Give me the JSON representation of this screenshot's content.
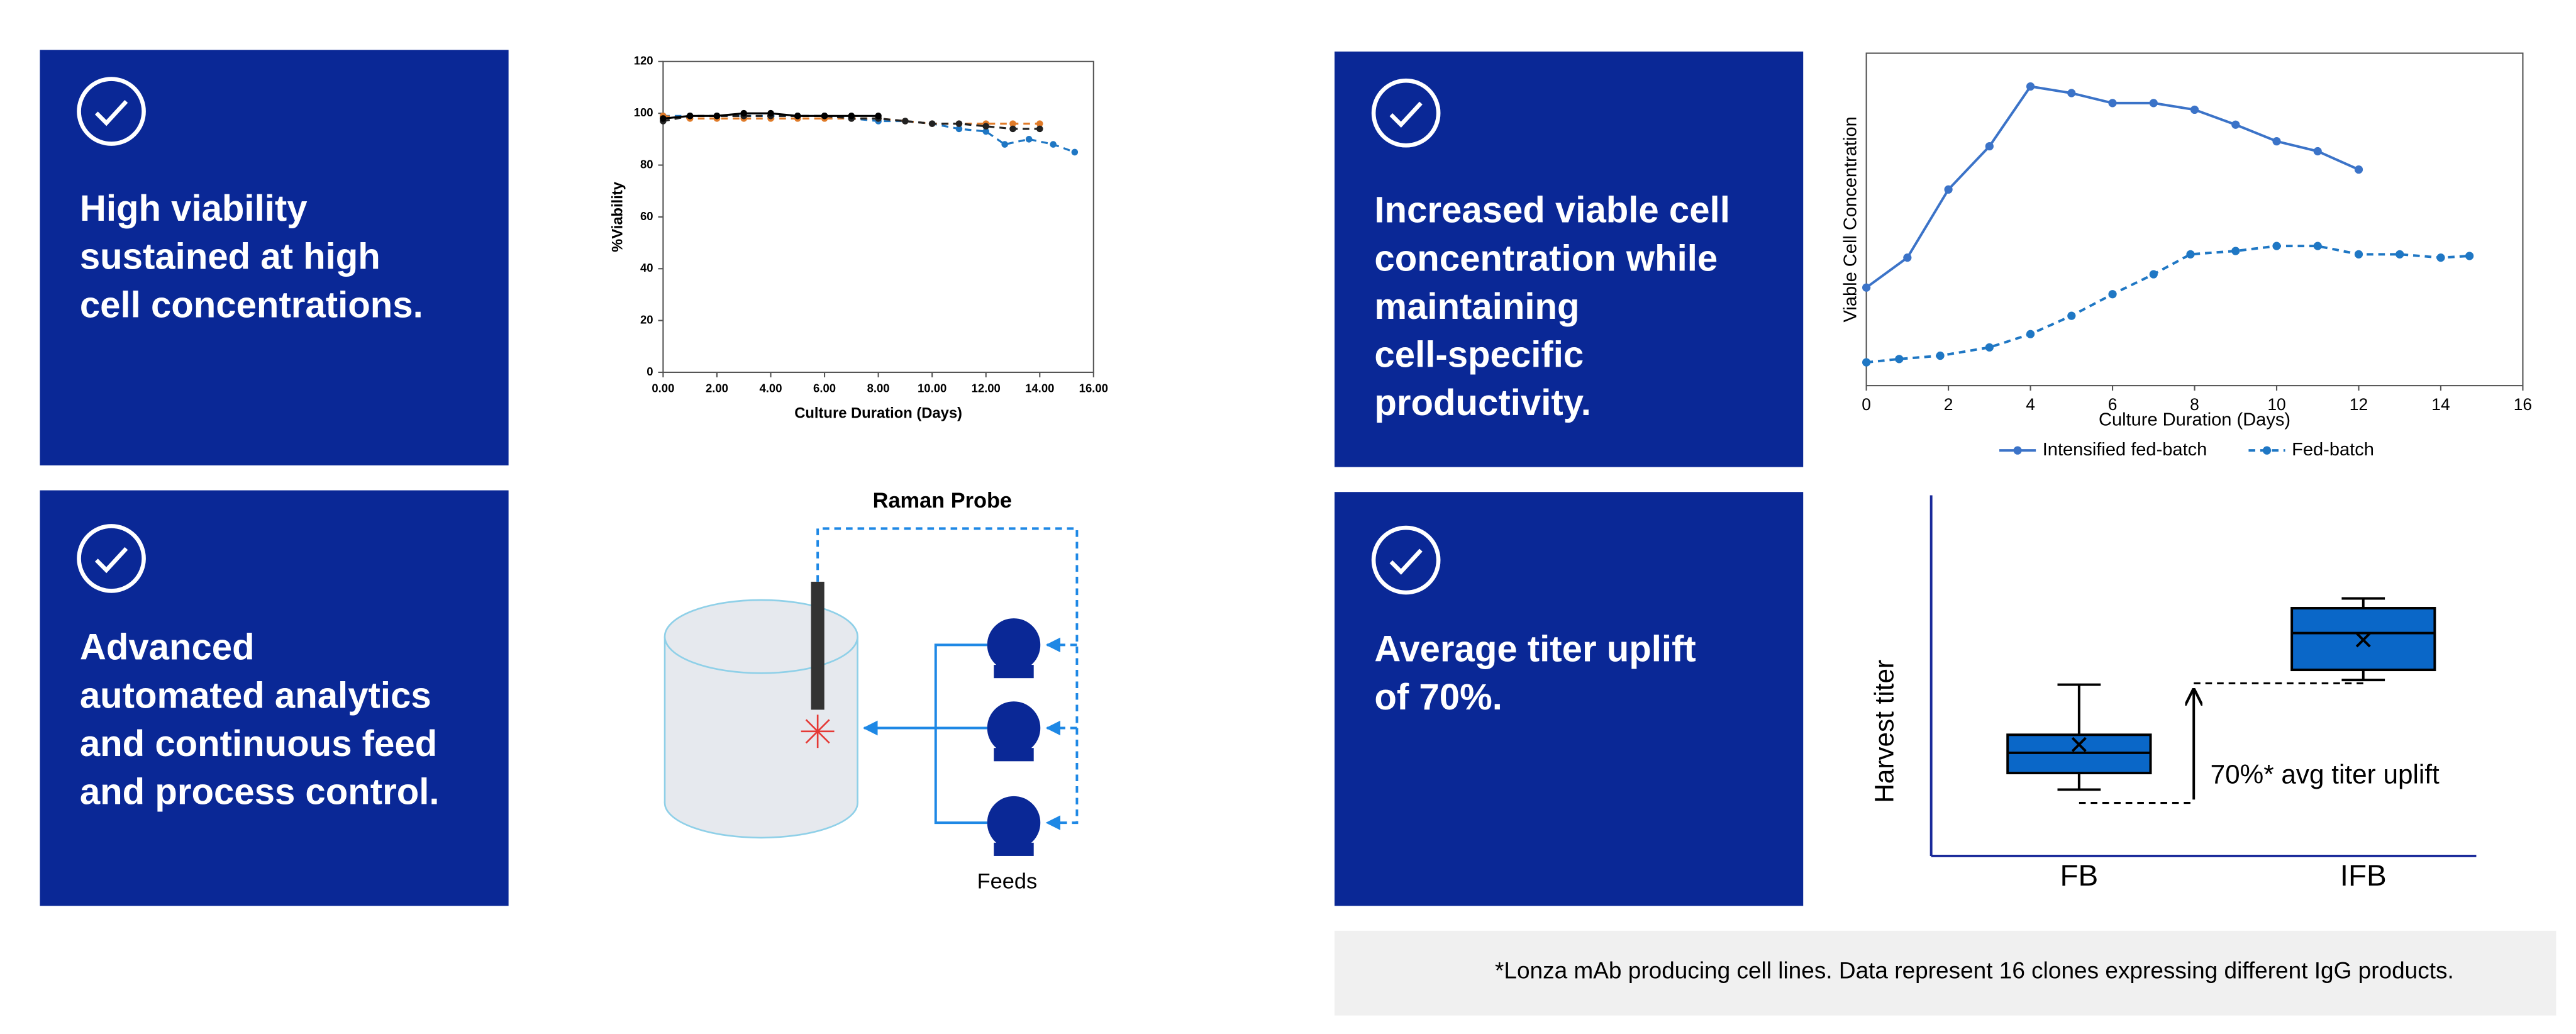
{
  "cards": [
    {
      "lines": [
        "High viability",
        "sustained at high",
        "cell concentrations."
      ]
    },
    {
      "lines": [
        "Advanced",
        "automated analytics",
        "and continuous feed",
        "and process control."
      ]
    },
    {
      "lines": [
        "Increased viable cell",
        "concentration while",
        "maintaining",
        "cell-specific",
        "productivity."
      ]
    },
    {
      "lines": [
        "Average titer uplift",
        "of 70%."
      ]
    }
  ],
  "diagram": {
    "title": "Raman Probe",
    "feeds_label": "Feeds"
  },
  "footnote": "*Lonza mAb producing cell lines. Data represent 16 clones expressing different IgG products.",
  "chart_data": [
    {
      "type": "line",
      "ylabel": "%Viability",
      "xlabel": "Culture Duration (Days)",
      "xlim": [
        0,
        16
      ],
      "xticks": [
        {
          "value": 0,
          "label": "0.00"
        },
        {
          "value": 2,
          "label": "2.00"
        },
        {
          "value": 4,
          "label": "4.00"
        },
        {
          "value": 6,
          "label": "6.00"
        },
        {
          "value": 8,
          "label": "8.00"
        },
        {
          "value": 10,
          "label": "10.00"
        },
        {
          "value": 12,
          "label": "12.00"
        },
        {
          "value": 14,
          "label": "14.00"
        },
        {
          "value": 16,
          "label": "16.00"
        }
      ],
      "ylim": [
        0,
        120
      ],
      "yticks": [
        0,
        20,
        40,
        60,
        80,
        100,
        120
      ],
      "series": [
        {
          "color": "#1f77c4",
          "line_style": "dashed",
          "x": [
            0,
            1,
            2,
            3,
            4,
            5,
            6,
            7,
            8,
            9,
            10,
            11,
            12,
            12.7,
            13.6,
            14.5,
            15.3
          ],
          "values": [
            99,
            99,
            99,
            99,
            99,
            99,
            99,
            98,
            97,
            97,
            96,
            94,
            93,
            88,
            90,
            88,
            85
          ]
        },
        {
          "color": "#e07b29",
          "line_style": "dashed",
          "x": [
            0,
            1,
            2,
            3,
            4,
            5,
            6,
            7,
            8,
            9,
            10,
            11,
            12,
            13,
            14
          ],
          "values": [
            99,
            98,
            98,
            98,
            98,
            98,
            98,
            98,
            98,
            97,
            96,
            96,
            96,
            96,
            96
          ]
        },
        {
          "color": "#222222",
          "line_style": "dashed",
          "x": [
            0,
            1,
            2,
            3,
            4,
            5,
            6,
            7,
            8,
            9,
            10,
            11,
            12,
            13,
            14
          ],
          "values": [
            97,
            99,
            99,
            99,
            99,
            99,
            99,
            98,
            98,
            97,
            96,
            96,
            95,
            94,
            94
          ]
        },
        {
          "color": "#000000",
          "line_style": "solid",
          "x": [
            0,
            1,
            2,
            3,
            4,
            5,
            6,
            7,
            8
          ],
          "values": [
            98,
            99,
            99,
            100,
            100,
            99,
            99,
            99,
            99
          ]
        }
      ]
    },
    {
      "type": "line",
      "ylabel": "Viable Cell Concentration",
      "xlabel": "Culture Duration (Days)",
      "xlim": [
        0,
        16
      ],
      "xticks": [
        0,
        2,
        4,
        6,
        8,
        10,
        12,
        14,
        16
      ],
      "ylim": [
        0,
        100
      ],
      "legend": "bottom",
      "series": [
        {
          "name": "Intensified fed-batch",
          "color": "#3b73c8",
          "line_style": "solid",
          "x": [
            0,
            1,
            2,
            3,
            4,
            5,
            6,
            7,
            8,
            9,
            10,
            11,
            12
          ],
          "values": [
            29.5,
            38.5,
            59,
            72,
            90,
            88,
            85,
            85,
            83,
            78.5,
            73.5,
            70.5,
            65
          ]
        },
        {
          "name": "Fed-batch",
          "color": "#1f77c4",
          "line_style": "dashed",
          "x": [
            0,
            0.8,
            1.8,
            3,
            4,
            5,
            6,
            7,
            7.9,
            9,
            10,
            11,
            12,
            13,
            14,
            14.7
          ],
          "values": [
            7,
            8,
            9,
            11.5,
            15.5,
            21,
            27.5,
            33.5,
            39.5,
            40.5,
            42,
            42,
            39.5,
            39.5,
            38.5,
            39
          ]
        }
      ]
    },
    {
      "type": "box",
      "ylabel": "Harvest titer",
      "categories": [
        "FB",
        "IFB"
      ],
      "ylim": [
        0,
        100
      ],
      "color": "#0a67c8",
      "boxes": [
        {
          "min": 18.4,
          "q1": 23.0,
          "median": 28.6,
          "q3": 33.6,
          "max": 47.5,
          "mean": 30.9
        },
        {
          "min": 48.8,
          "q1": 51.6,
          "median": 61.8,
          "q3": 68.7,
          "max": 71.4,
          "mean": 59.9
        }
      ],
      "annotation": "70%* avg titer uplift"
    }
  ]
}
